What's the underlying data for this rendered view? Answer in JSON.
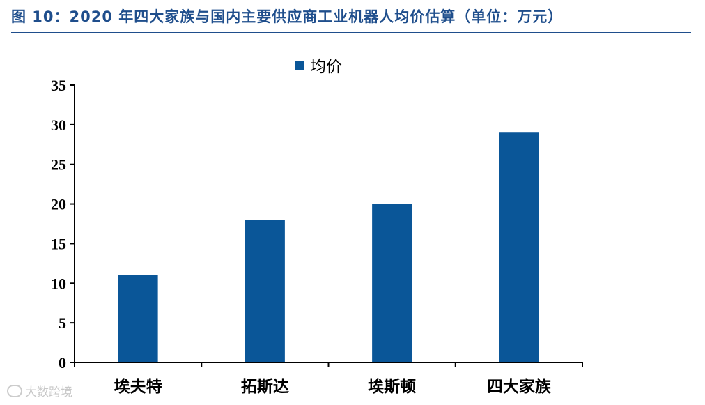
{
  "title": "图 10：2020 年四大家族与国内主要供应商工业机器人均价估算（单位：万元）",
  "watermark": "大数跨境",
  "colors": {
    "bar": "#0a5698",
    "title": "#1f4e8c",
    "axis": "#000000"
  },
  "chart_data": {
    "type": "bar",
    "title": "图 10：2020 年四大家族与国内主要供应商工业机器人均价估算（单位：万元）",
    "categories": [
      "埃夫特",
      "拓斯达",
      "埃斯顿",
      "四大家族"
    ],
    "series": [
      {
        "name": "均价",
        "values": [
          11,
          18,
          20,
          29
        ]
      }
    ],
    "xlabel": "",
    "ylabel": "",
    "ylim": [
      0,
      35
    ],
    "yticks": [
      0,
      5,
      10,
      15,
      20,
      25,
      30,
      35
    ],
    "grid": false,
    "legend": "top-center"
  }
}
